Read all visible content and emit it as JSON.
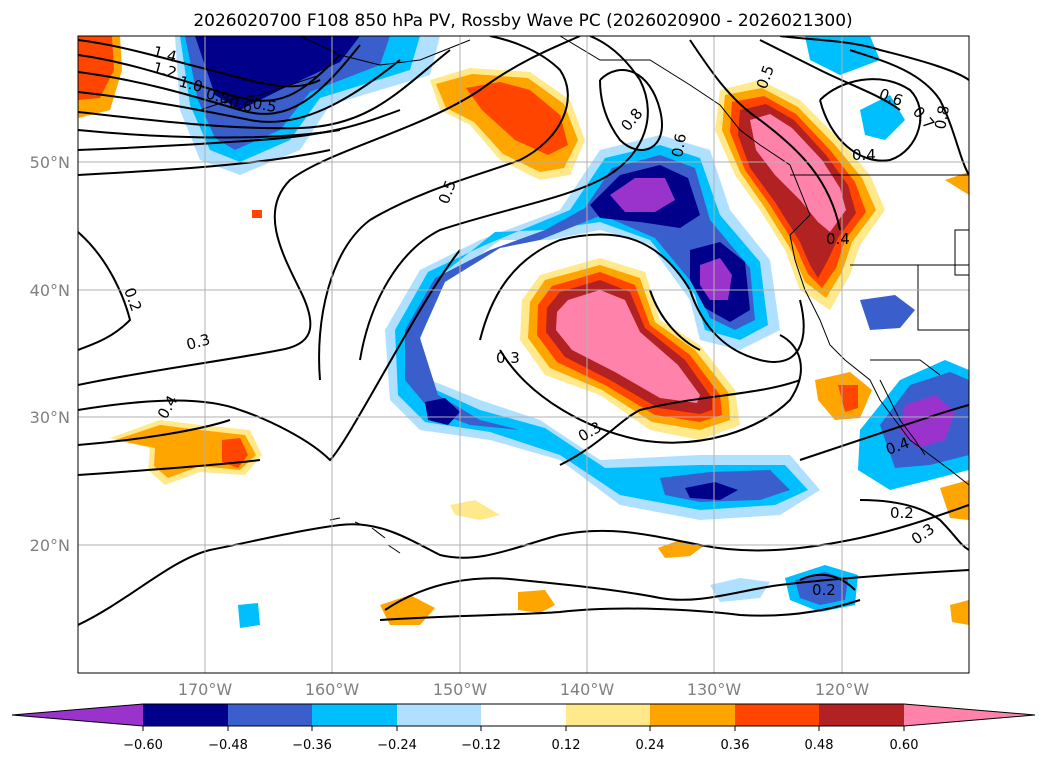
{
  "title": "2026020700 F108 850 hPa PV, Rossby Wave PC (2026020900 - 2026021300)",
  "map": {
    "lon_range": [
      -180,
      -110
    ],
    "lat_range": [
      10,
      60
    ],
    "lat_ticks": [
      "20°N",
      "30°N",
      "40°N",
      "50°N"
    ],
    "lon_ticks": [
      "170°W",
      "160°W",
      "150°W",
      "140°W",
      "130°W",
      "120°W"
    ],
    "grid": true
  },
  "colorbar": {
    "levels": [
      "−0.60",
      "−0.48",
      "−0.36",
      "−0.24",
      "−0.12",
      "0.12",
      "0.24",
      "0.36",
      "0.48",
      "0.60"
    ],
    "colors": [
      "#9933cc",
      "#00008b",
      "#3a5fcd",
      "#00bfff",
      "#b0e0ff",
      "#ffffff",
      "#ffe98a",
      "#ffa500",
      "#ff4500",
      "#b22222",
      "#ff82ab"
    ],
    "extend": "both",
    "placement": "bottom"
  },
  "contour_labels": [
    "1.4",
    "1.2",
    "1.0",
    "0.8",
    "0.6",
    "0.5",
    "0.8",
    "0.6",
    "0.5",
    "0.6",
    "0.7",
    "0.8",
    "0.4",
    "0.4",
    "0.5",
    "0.2",
    "0.3",
    "0.4",
    "0.3",
    "0.3",
    "0.4",
    "0.2",
    "0.3",
    "0.2"
  ]
}
